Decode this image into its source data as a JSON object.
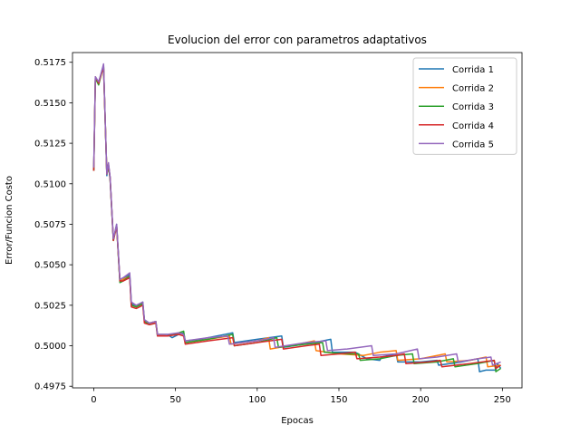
{
  "chart_data": {
    "type": "line",
    "title": "Evolucion del error con parametros adaptativos",
    "xlabel": "Epocas",
    "ylabel": "Error/Funcion Costo",
    "xlim": [
      -13,
      262
    ],
    "ylim": [
      0.4974,
      0.5181
    ],
    "xticks": [
      0,
      50,
      100,
      150,
      200,
      250
    ],
    "yticks": [
      0.4975,
      0.5,
      0.5025,
      0.505,
      0.5075,
      0.51,
      0.5125,
      0.515,
      0.5175
    ],
    "ytick_labels": [
      "0.4975",
      "0.5000",
      "0.5025",
      "0.5050",
      "0.5075",
      "0.5100",
      "0.5125",
      "0.5150",
      "0.5175"
    ],
    "grid": false,
    "legend_position": "upper right",
    "series": [
      {
        "name": "Corrida 1",
        "color": "#1f77b4",
        "points": [
          [
            0,
            0.5108
          ],
          [
            1,
            0.5166
          ],
          [
            3,
            0.5162
          ],
          [
            5,
            0.517
          ],
          [
            6,
            0.5173
          ],
          [
            8,
            0.5105
          ],
          [
            9,
            0.5112
          ],
          [
            10,
            0.5104
          ],
          [
            12,
            0.5065
          ],
          [
            14,
            0.5075
          ],
          [
            16,
            0.504
          ],
          [
            18,
            0.5041
          ],
          [
            22,
            0.5044
          ],
          [
            23,
            0.5026
          ],
          [
            26,
            0.5024
          ],
          [
            30,
            0.5027
          ],
          [
            31,
            0.5016
          ],
          [
            34,
            0.5014
          ],
          [
            38,
            0.5015
          ],
          [
            39,
            0.5007
          ],
          [
            45,
            0.5007
          ],
          [
            48,
            0.5005
          ],
          [
            52,
            0.5007
          ],
          [
            55,
            0.5008
          ],
          [
            56,
            0.5003
          ],
          [
            65,
            0.5004
          ],
          [
            75,
            0.5006
          ],
          [
            85,
            0.5008
          ],
          [
            86,
            0.5002
          ],
          [
            100,
            0.5004
          ],
          [
            115,
            0.5006
          ],
          [
            116,
            0.4999
          ],
          [
            135,
            0.5002
          ],
          [
            145,
            0.5004
          ],
          [
            146,
            0.4996
          ],
          [
            160,
            0.4996
          ],
          [
            167,
            0.4992
          ],
          [
            175,
            0.4991
          ],
          [
            176,
            0.4993
          ],
          [
            185,
            0.4995
          ],
          [
            186,
            0.499
          ],
          [
            200,
            0.499
          ],
          [
            210,
            0.4991
          ],
          [
            211,
            0.4988
          ],
          [
            225,
            0.499
          ],
          [
            235,
            0.4992
          ],
          [
            236,
            0.4984
          ],
          [
            240,
            0.4985
          ],
          [
            246,
            0.4985
          ],
          [
            247,
            0.4989
          ],
          [
            249,
            0.4986
          ]
        ]
      },
      {
        "name": "Corrida 2",
        "color": "#ff7f0e",
        "points": [
          [
            0,
            0.5108
          ],
          [
            1,
            0.5165
          ],
          [
            3,
            0.5162
          ],
          [
            5,
            0.5169
          ],
          [
            6,
            0.5172
          ],
          [
            8,
            0.5106
          ],
          [
            9,
            0.5111
          ],
          [
            10,
            0.5103
          ],
          [
            12,
            0.5065
          ],
          [
            14,
            0.5074
          ],
          [
            16,
            0.504
          ],
          [
            18,
            0.5041
          ],
          [
            22,
            0.5043
          ],
          [
            23,
            0.5025
          ],
          [
            26,
            0.5024
          ],
          [
            30,
            0.5026
          ],
          [
            31,
            0.5015
          ],
          [
            34,
            0.5014
          ],
          [
            38,
            0.5015
          ],
          [
            39,
            0.5007
          ],
          [
            45,
            0.5006
          ],
          [
            52,
            0.5008
          ],
          [
            55,
            0.5007
          ],
          [
            56,
            0.5002
          ],
          [
            70,
            0.5004
          ],
          [
            83,
            0.5006
          ],
          [
            84,
            0.5001
          ],
          [
            100,
            0.5003
          ],
          [
            107,
            0.5005
          ],
          [
            108,
            0.4998
          ],
          [
            125,
            0.5001
          ],
          [
            135,
            0.5003
          ],
          [
            136,
            0.4997
          ],
          [
            150,
            0.4995
          ],
          [
            165,
            0.4994
          ],
          [
            175,
            0.4996
          ],
          [
            185,
            0.4997
          ],
          [
            186,
            0.4991
          ],
          [
            200,
            0.4992
          ],
          [
            215,
            0.4995
          ],
          [
            216,
            0.499
          ],
          [
            230,
            0.4991
          ],
          [
            240,
            0.4993
          ],
          [
            241,
            0.4987
          ],
          [
            249,
            0.4988
          ]
        ]
      },
      {
        "name": "Corrida 3",
        "color": "#2ca02c",
        "points": [
          [
            0,
            0.5108
          ],
          [
            1,
            0.5165
          ],
          [
            3,
            0.5161
          ],
          [
            5,
            0.5169
          ],
          [
            6,
            0.5172
          ],
          [
            8,
            0.5106
          ],
          [
            9,
            0.5111
          ],
          [
            10,
            0.5103
          ],
          [
            12,
            0.5065
          ],
          [
            14,
            0.5074
          ],
          [
            16,
            0.5039
          ],
          [
            18,
            0.504
          ],
          [
            22,
            0.5043
          ],
          [
            23,
            0.5025
          ],
          [
            26,
            0.5024
          ],
          [
            30,
            0.5026
          ],
          [
            31,
            0.5015
          ],
          [
            34,
            0.5013
          ],
          [
            38,
            0.5014
          ],
          [
            39,
            0.5006
          ],
          [
            45,
            0.5006
          ],
          [
            52,
            0.5008
          ],
          [
            55,
            0.5009
          ],
          [
            56,
            0.5002
          ],
          [
            70,
            0.5004
          ],
          [
            85,
            0.5007
          ],
          [
            86,
            0.5
          ],
          [
            100,
            0.5002
          ],
          [
            112,
            0.5005
          ],
          [
            113,
            0.4999
          ],
          [
            130,
            0.5001
          ],
          [
            140,
            0.5002
          ],
          [
            141,
            0.4996
          ],
          [
            155,
            0.4995
          ],
          [
            162,
            0.4995
          ],
          [
            163,
            0.4991
          ],
          [
            175,
            0.4992
          ],
          [
            185,
            0.4994
          ],
          [
            195,
            0.4995
          ],
          [
            196,
            0.4989
          ],
          [
            210,
            0.499
          ],
          [
            220,
            0.4992
          ],
          [
            221,
            0.4987
          ],
          [
            235,
            0.4989
          ],
          [
            245,
            0.4991
          ],
          [
            246,
            0.4984
          ],
          [
            249,
            0.4986
          ]
        ]
      },
      {
        "name": "Corrida 4",
        "color": "#d62728",
        "points": [
          [
            0,
            0.5108
          ],
          [
            1,
            0.5166
          ],
          [
            3,
            0.5162
          ],
          [
            5,
            0.5169
          ],
          [
            6,
            0.5172
          ],
          [
            8,
            0.5106
          ],
          [
            9,
            0.5112
          ],
          [
            10,
            0.5104
          ],
          [
            12,
            0.5065
          ],
          [
            14,
            0.5074
          ],
          [
            16,
            0.504
          ],
          [
            18,
            0.504
          ],
          [
            22,
            0.5042
          ],
          [
            23,
            0.5024
          ],
          [
            26,
            0.5023
          ],
          [
            30,
            0.5025
          ],
          [
            31,
            0.5014
          ],
          [
            34,
            0.5013
          ],
          [
            38,
            0.5014
          ],
          [
            39,
            0.5006
          ],
          [
            45,
            0.5006
          ],
          [
            52,
            0.5007
          ],
          [
            55,
            0.5006
          ],
          [
            56,
            0.5001
          ],
          [
            70,
            0.5003
          ],
          [
            85,
            0.5005
          ],
          [
            86,
            0.5
          ],
          [
            100,
            0.5002
          ],
          [
            115,
            0.5004
          ],
          [
            116,
            0.4998
          ],
          [
            130,
            0.5
          ],
          [
            138,
            0.5001
          ],
          [
            139,
            0.4994
          ],
          [
            150,
            0.4995
          ],
          [
            160,
            0.4996
          ],
          [
            161,
            0.4992
          ],
          [
            175,
            0.4993
          ],
          [
            185,
            0.4994
          ],
          [
            190,
            0.4995
          ],
          [
            191,
            0.4989
          ],
          [
            205,
            0.499
          ],
          [
            212,
            0.4991
          ],
          [
            213,
            0.4987
          ],
          [
            230,
            0.4989
          ],
          [
            245,
            0.4991
          ],
          [
            246,
            0.4986
          ],
          [
            249,
            0.4988
          ]
        ]
      },
      {
        "name": "Corrida 5",
        "color": "#9467bd",
        "points": [
          [
            0,
            0.511
          ],
          [
            1,
            0.5166
          ],
          [
            3,
            0.5163
          ],
          [
            5,
            0.517
          ],
          [
            6,
            0.5174
          ],
          [
            8,
            0.5106
          ],
          [
            9,
            0.5113
          ],
          [
            10,
            0.5104
          ],
          [
            12,
            0.5066
          ],
          [
            14,
            0.5075
          ],
          [
            16,
            0.5041
          ],
          [
            18,
            0.5042
          ],
          [
            22,
            0.5045
          ],
          [
            23,
            0.5027
          ],
          [
            26,
            0.5025
          ],
          [
            30,
            0.5027
          ],
          [
            31,
            0.5016
          ],
          [
            34,
            0.5014
          ],
          [
            38,
            0.5015
          ],
          [
            39,
            0.5007
          ],
          [
            45,
            0.5007
          ],
          [
            52,
            0.5008
          ],
          [
            55,
            0.5007
          ],
          [
            56,
            0.5003
          ],
          [
            70,
            0.5005
          ],
          [
            82,
            0.5006
          ],
          [
            83,
            0.5001
          ],
          [
            100,
            0.5003
          ],
          [
            110,
            0.5005
          ],
          [
            111,
            0.4999
          ],
          [
            130,
            0.5002
          ],
          [
            142,
            0.5003
          ],
          [
            143,
            0.4997
          ],
          [
            155,
            0.4998
          ],
          [
            170,
            0.5
          ],
          [
            171,
            0.4994
          ],
          [
            185,
            0.4995
          ],
          [
            198,
            0.4998
          ],
          [
            199,
            0.4992
          ],
          [
            210,
            0.4993
          ],
          [
            222,
            0.4995
          ],
          [
            223,
            0.499
          ],
          [
            235,
            0.4992
          ],
          [
            243,
            0.4993
          ],
          [
            244,
            0.4988
          ],
          [
            249,
            0.499
          ]
        ]
      }
    ]
  }
}
